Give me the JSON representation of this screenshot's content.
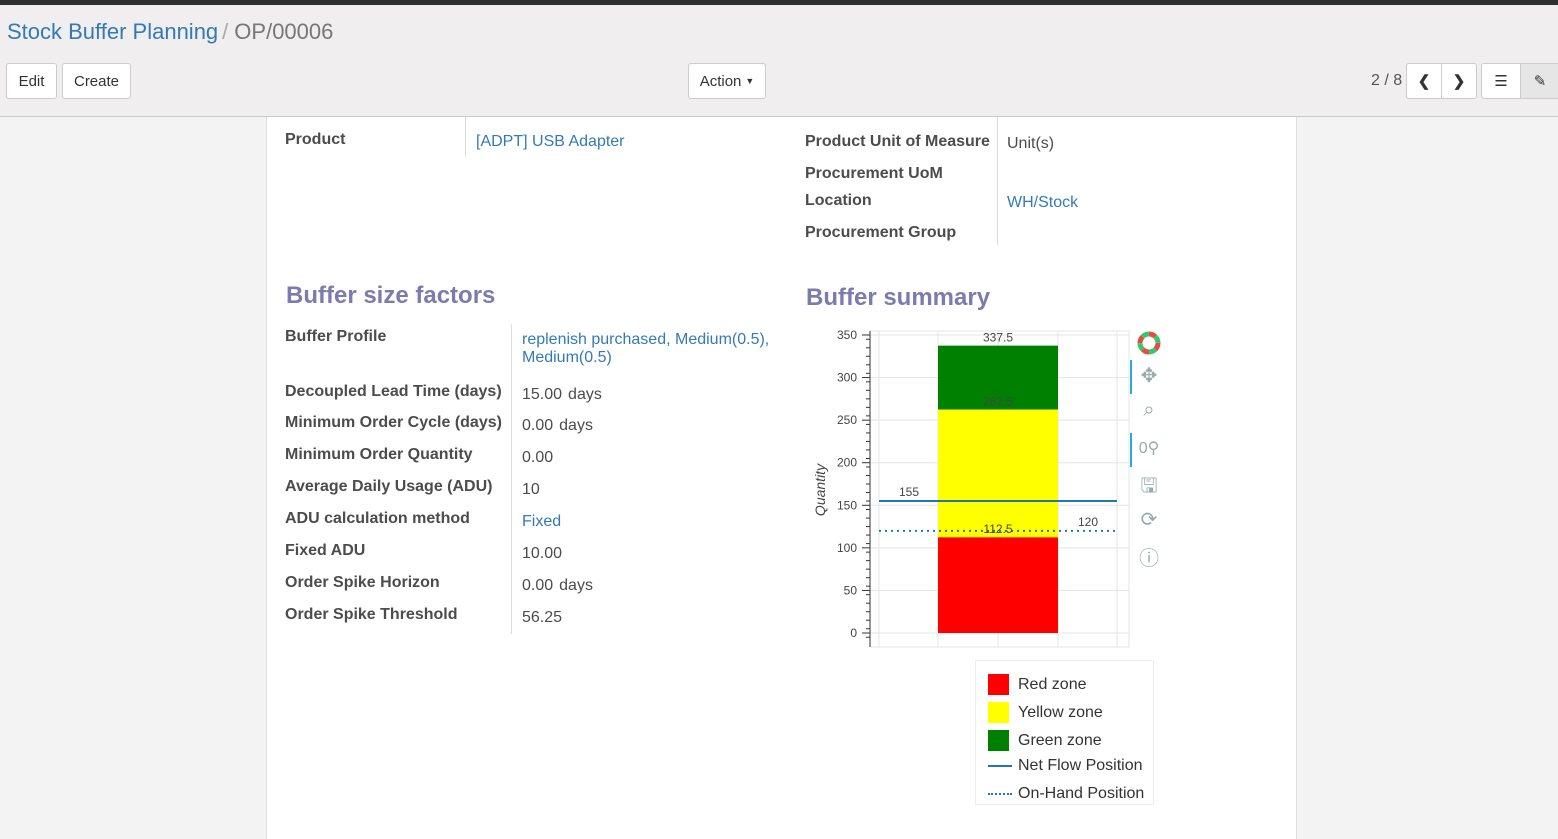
{
  "breadcrumb": {
    "parent": "Stock Buffer Planning",
    "current": "OP/00006"
  },
  "toolbar": {
    "edit": "Edit",
    "create": "Create",
    "action": "Action",
    "pager": "2 / 8"
  },
  "form": {
    "product_label": "Product",
    "product_value": "[ADPT] USB Adapter",
    "uom_label": "Product Unit of Measure",
    "uom_value": "Unit(s)",
    "proc_uom_label": "Procurement UoM",
    "location_label": "Location",
    "location_value": "WH/Stock",
    "proc_group_label": "Procurement Group"
  },
  "factors": {
    "title": "Buffer size factors",
    "rows": [
      {
        "label": "Buffer Profile",
        "value": "replenish purchased, Medium(0.5),",
        "value2": "Medium(0.5)",
        "link": true
      },
      {
        "label": "Decoupled Lead Time (days)",
        "value": "15.00",
        "unit": "days"
      },
      {
        "label": "Minimum Order Cycle (days)",
        "value": "0.00",
        "unit": "days"
      },
      {
        "label": "Minimum Order Quantity",
        "value": "0.00"
      },
      {
        "label": "Average Daily Usage (ADU)",
        "value": "10"
      },
      {
        "label": "ADU calculation method",
        "value": "Fixed",
        "link": true
      },
      {
        "label": "Fixed ADU",
        "value": "10.00"
      },
      {
        "label": "Order Spike Horizon",
        "value": "0.00",
        "unit": "days"
      },
      {
        "label": "Order Spike Threshold",
        "value": "56.25"
      }
    ]
  },
  "summary": {
    "title": "Buffer summary"
  },
  "chart_data": {
    "type": "bar",
    "ylabel": "Quantity",
    "ylim": [
      -5,
      352
    ],
    "yticks": [
      0,
      50,
      100,
      150,
      200,
      250,
      300,
      350
    ],
    "grid": true,
    "stacks": [
      {
        "name": "Red zone",
        "from": 0,
        "to": 112.5,
        "color": "#ff0000",
        "label": "112.5"
      },
      {
        "name": "Yellow zone",
        "from": 112.5,
        "to": 262.5,
        "color": "#ffff00",
        "label": "262.5"
      },
      {
        "name": "Green zone",
        "from": 262.5,
        "to": 337.5,
        "color": "#008000",
        "label": "337.5"
      }
    ],
    "lines": [
      {
        "name": "Net Flow Position",
        "value": 155,
        "style": "solid",
        "color": "#1f77b4",
        "label": "155"
      },
      {
        "name": "On-Hand Position",
        "value": 120,
        "style": "dotted",
        "color": "#1f77b4",
        "label": "120"
      }
    ],
    "legend_position": "bottom"
  },
  "chart_tools": [
    "bokeh-logo-icon",
    "pan-icon",
    "box-zoom-icon",
    "wheel-zoom-icon",
    "save-icon",
    "reset-icon",
    "help-icon"
  ]
}
